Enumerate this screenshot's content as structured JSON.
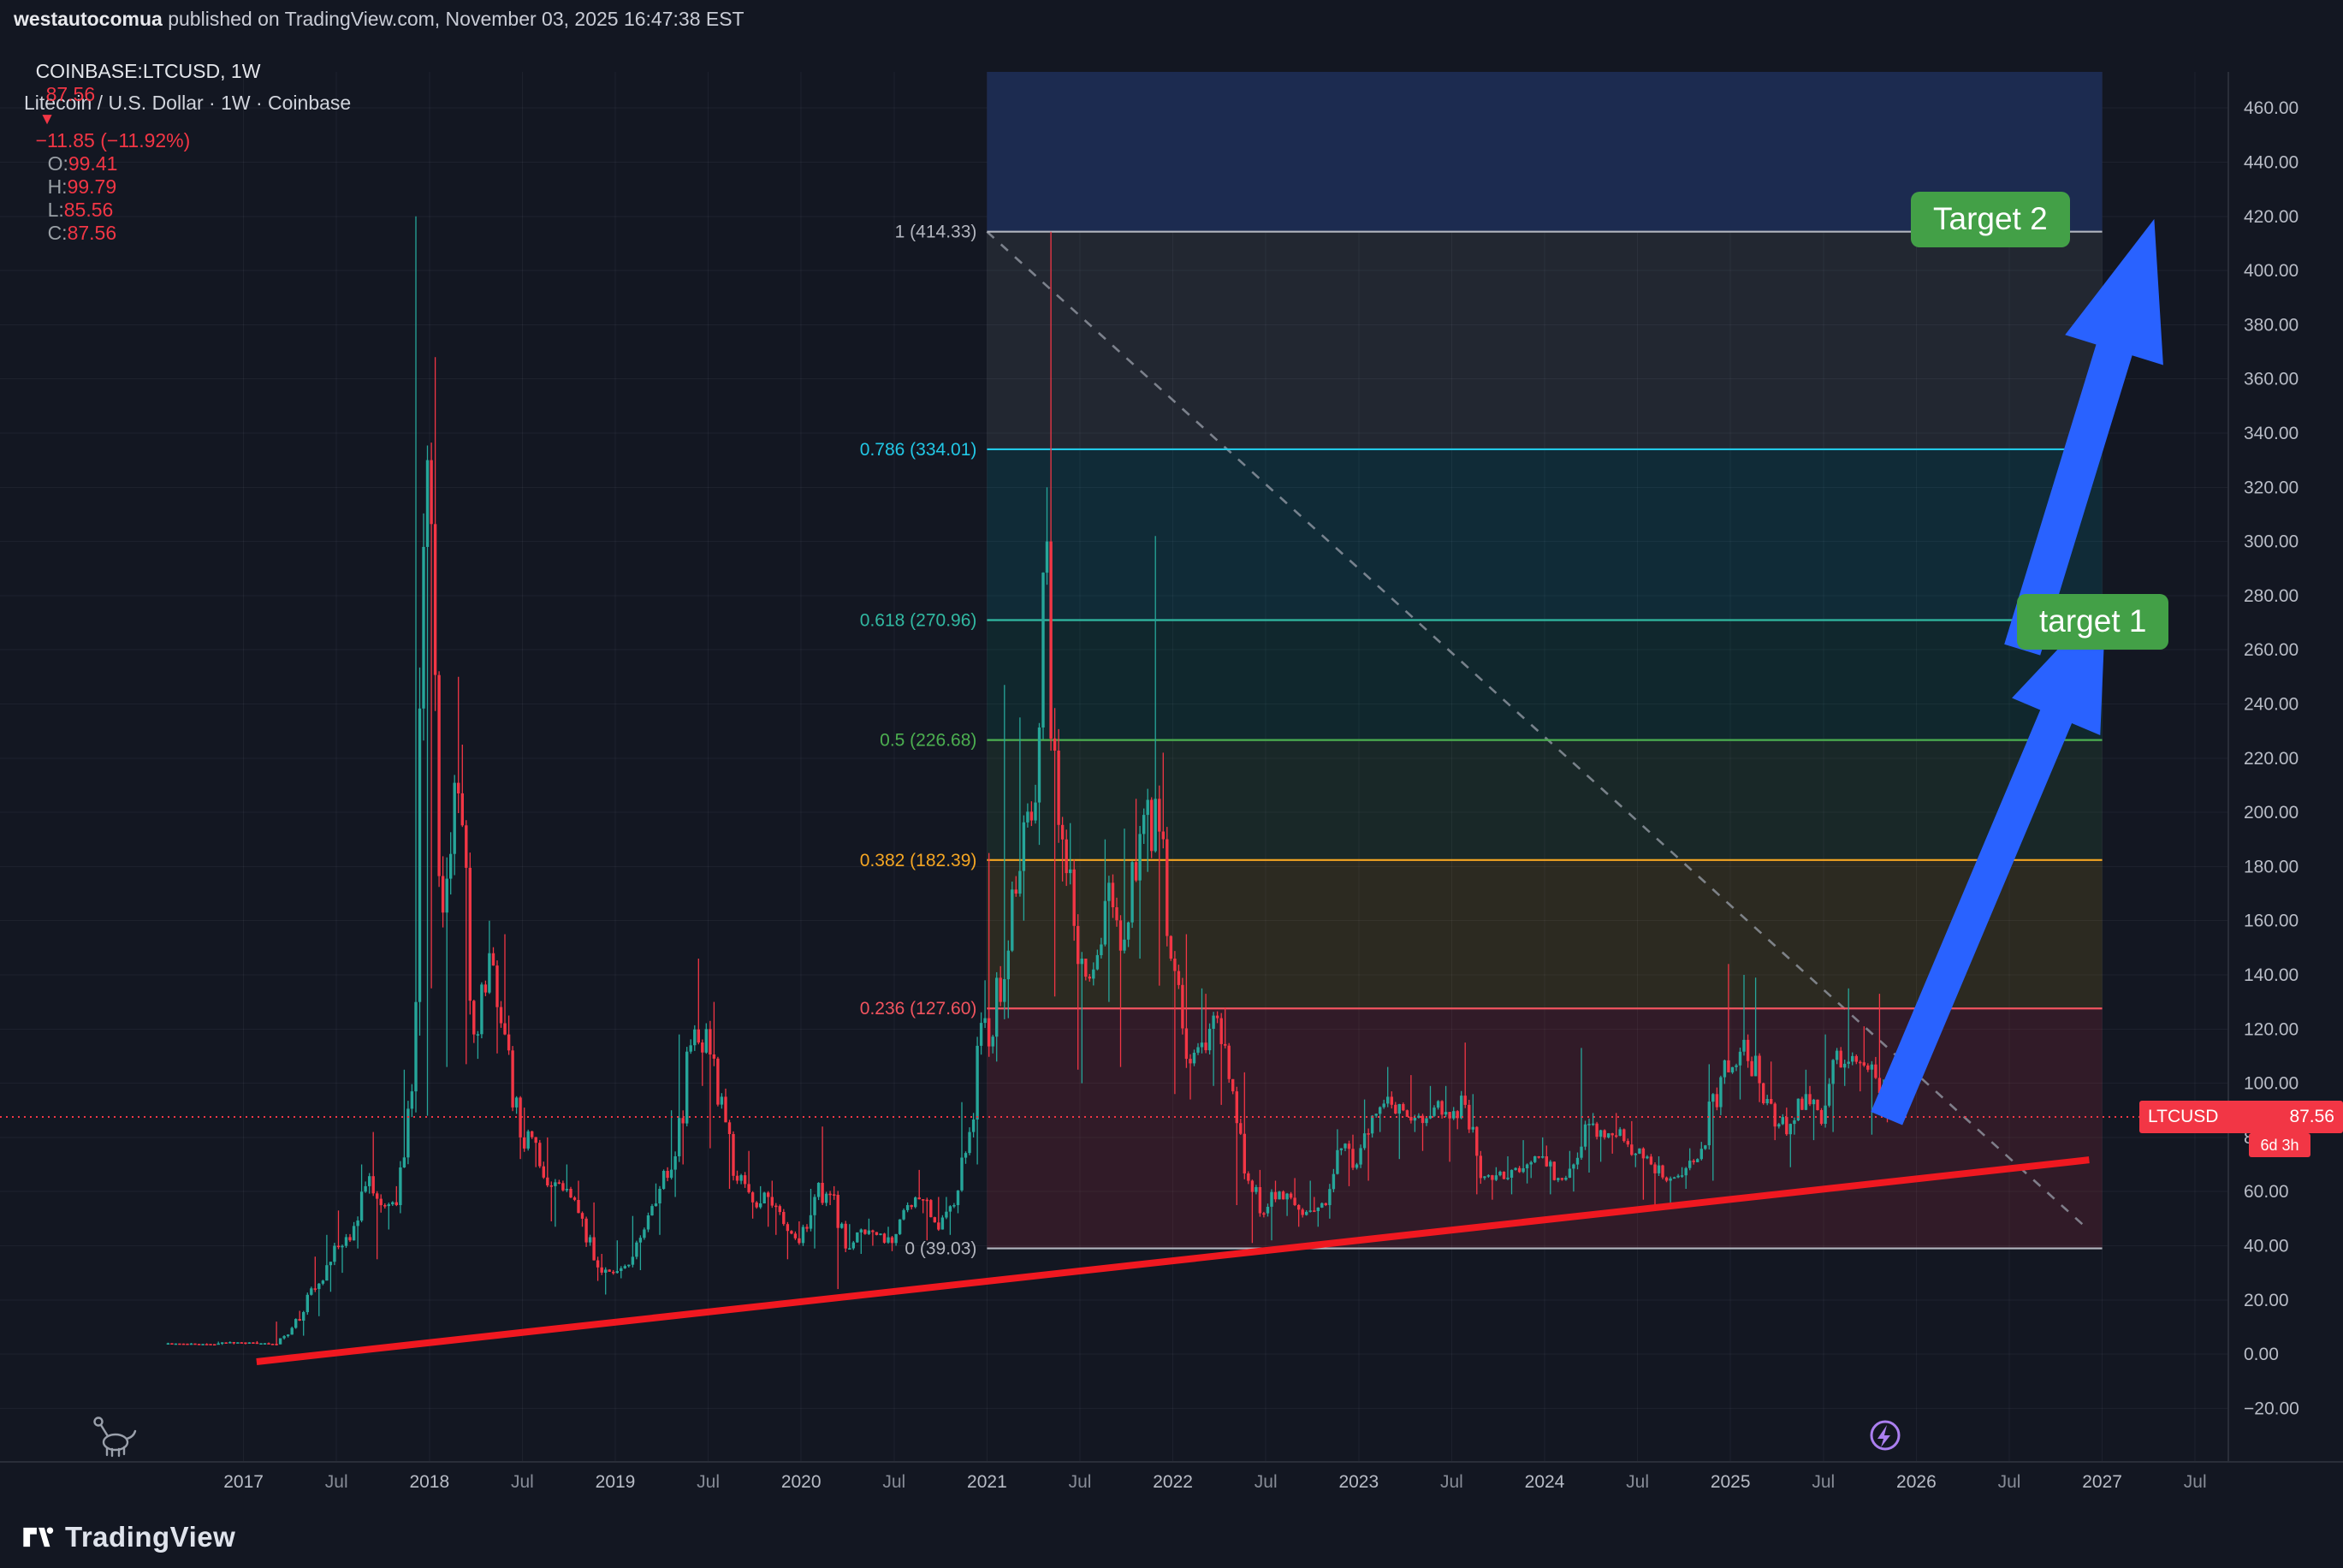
{
  "header": {
    "byline_user": "westautocomua",
    "byline_rest": " published on TradingView.com, November 03, 2025 16:47:38 EST",
    "symbol_line": {
      "symbol": "COINBASE:LTCUSD, 1W",
      "last": "87.56",
      "arrow": "▼",
      "change": "−11.85 (−11.92%)",
      "ohlc": [
        {
          "label": "O:",
          "value": "99.41"
        },
        {
          "label": "H:",
          "value": "99.79"
        },
        {
          "label": "L:",
          "value": "85.56"
        },
        {
          "label": "C:",
          "value": "87.56"
        }
      ]
    }
  },
  "chart_title": "Litecoin / U.S. Dollar · 1W · Coinbase",
  "badges": {
    "target1": "target 1",
    "target2": "Target 2"
  },
  "price_tag": {
    "symbol": "LTCUSD",
    "price": "87.56",
    "countdown": "6d 3h"
  },
  "footer": {
    "brand": "TradingView"
  },
  "colors_ui": {
    "badge_green": "#43a047",
    "tag_red": "#f23645"
  },
  "chart_data": {
    "type": "candlestick",
    "title": "Litecoin / U.S. Dollar · 1W · Coinbase",
    "y_axis": {
      "min": -20,
      "max": 460,
      "step": 20
    },
    "x_axis": {
      "years": [
        2017,
        2018,
        2019,
        2020,
        2021,
        2022,
        2023,
        2024,
        2025,
        2026,
        2027
      ],
      "mid_label": "Jul"
    },
    "current_price": 87.56,
    "colors": {
      "bg": "#131722",
      "grid": "rgba(197,203,220,0.06)",
      "border": "#2a2e39",
      "up": "#26a69a",
      "down": "#f23645",
      "trend": "#f01820",
      "arrow": "#2962ff",
      "dashed": "#9aa0ab",
      "axis_text": "#b8bcc6",
      "axis_text_dim": "#868b96",
      "top_band": "#1c2b50"
    },
    "fib": {
      "x_start": 2021.0,
      "x_end": 2027.0,
      "levels": [
        {
          "ratio": "1",
          "price": 414.33,
          "color": "#b2b5be"
        },
        {
          "ratio": "0.786",
          "price": 334.01,
          "color": "#22c8e6"
        },
        {
          "ratio": "0.618",
          "price": 270.96,
          "color": "#31b9a2"
        },
        {
          "ratio": "0.5",
          "price": 226.68,
          "color": "#4caf50"
        },
        {
          "ratio": "0.382",
          "price": 182.39,
          "color": "#f5a623"
        },
        {
          "ratio": "0.236",
          "price": 127.6,
          "color": "#f2545f"
        },
        {
          "ratio": "0",
          "price": 39.03,
          "color": "#b2b5be"
        }
      ],
      "band_fills": [
        "rgba(150,155,166,0.12)",
        "rgba(0,190,214,0.12)",
        "rgba(0,170,140,0.11)",
        "rgba(80,180,90,0.11)",
        "rgba(230,180,30,0.12)",
        "rgba(235,60,80,0.14)"
      ]
    },
    "trendline": {
      "x1": 2017.07,
      "p1": -2.8,
      "x2": 2026.93,
      "p2": 71.7
    },
    "dashed_line": {
      "x1": 2021.0,
      "p1": 414.33,
      "x2": 2026.92,
      "p2": 46.3
    },
    "arrows": [
      {
        "name": "arrow-target-1",
        "tail": [
          2025.84,
          87
        ],
        "tip": [
          2027.02,
          279
        ],
        "sw": 20,
        "hw": 56,
        "hl": 150
      },
      {
        "name": "arrow-target-2",
        "tail": [
          2026.57,
          260
        ],
        "tip": [
          2027.28,
          419
        ],
        "sw": 22,
        "hw": 60,
        "hl": 160
      }
    ],
    "candles_monthly_thlc": [
      [
        2016.5833,
        4.2,
        3.5,
        3.9
      ],
      [
        2016.6667,
        4.1,
        3.5,
        3.8
      ],
      [
        2016.75,
        4.0,
        3.4,
        3.7
      ],
      [
        2016.8333,
        4.6,
        3.4,
        4.3
      ],
      [
        2016.9167,
        4.7,
        3.6,
        4.3
      ],
      [
        2017.0,
        4.8,
        3.6,
        4.0
      ],
      [
        2017.0833,
        4.3,
        3.5,
        3.8
      ],
      [
        2017.1667,
        12,
        3.6,
        7.2
      ],
      [
        2017.25,
        16,
        6.8,
        15.5
      ],
      [
        2017.3333,
        36,
        14,
        26
      ],
      [
        2017.4167,
        44,
        23,
        40
      ],
      [
        2017.5,
        53,
        30,
        42
      ],
      [
        2017.5833,
        70,
        39,
        62
      ],
      [
        2017.6667,
        82,
        35,
        55
      ],
      [
        2017.75,
        62,
        46,
        55
      ],
      [
        2017.8333,
        105,
        52,
        97
      ],
      [
        2017.9167,
        420,
        88,
        330
      ],
      [
        2018.0,
        368,
        135,
        163
      ],
      [
        2018.0833,
        250,
        106,
        207
      ],
      [
        2018.1667,
        225,
        107,
        118
      ],
      [
        2018.25,
        160,
        109,
        148
      ],
      [
        2018.3333,
        155,
        111,
        118
      ],
      [
        2018.4167,
        125,
        72,
        80
      ],
      [
        2018.5,
        91,
        69,
        78
      ],
      [
        2018.5833,
        80,
        49,
        62
      ],
      [
        2018.6667,
        70,
        47,
        61
      ],
      [
        2018.75,
        64,
        47,
        50
      ],
      [
        2018.8333,
        56,
        27,
        32
      ],
      [
        2018.9167,
        37,
        22,
        30
      ],
      [
        2019.0,
        42,
        28,
        33
      ],
      [
        2019.0833,
        51,
        31,
        46
      ],
      [
        2019.1667,
        63,
        44,
        61
      ],
      [
        2019.25,
        90,
        58,
        73
      ],
      [
        2019.3333,
        118,
        70,
        114
      ],
      [
        2019.4167,
        146,
        99,
        120
      ],
      [
        2019.5,
        130,
        76,
        95
      ],
      [
        2019.5833,
        98,
        61,
        64
      ],
      [
        2019.6667,
        75,
        50,
        56
      ],
      [
        2019.75,
        62,
        47,
        58
      ],
      [
        2019.8333,
        64,
        44,
        48
      ],
      [
        2019.9167,
        49,
        35,
        41
      ],
      [
        2020.0,
        61,
        39,
        58
      ],
      [
        2020.0833,
        84,
        55,
        59
      ],
      [
        2020.1667,
        62,
        24,
        39
      ],
      [
        2020.25,
        48,
        37,
        46
      ],
      [
        2020.3333,
        50,
        40,
        44
      ],
      [
        2020.4167,
        47,
        38,
        41
      ],
      [
        2020.5,
        56,
        40,
        55
      ],
      [
        2020.5833,
        68,
        52,
        57
      ],
      [
        2020.6667,
        58,
        42,
        46
      ],
      [
        2020.75,
        58,
        44,
        55
      ],
      [
        2020.8333,
        93,
        52,
        82
      ],
      [
        2020.9167,
        138,
        70,
        124
      ],
      [
        2021.0,
        185,
        108,
        130
      ],
      [
        2021.0833,
        247,
        124,
        170
      ],
      [
        2021.1667,
        235,
        160,
        197
      ],
      [
        2021.25,
        320,
        188,
        300
      ],
      [
        2021.3333,
        414.33,
        132,
        190
      ],
      [
        2021.4167,
        196,
        105,
        144
      ],
      [
        2021.5,
        146,
        100,
        142
      ],
      [
        2021.5833,
        190,
        130,
        174
      ],
      [
        2021.6667,
        194,
        106,
        153
      ],
      [
        2021.75,
        205,
        146,
        192
      ],
      [
        2021.8333,
        302,
        178,
        205
      ],
      [
        2021.9167,
        222,
        136,
        146
      ],
      [
        2022.0,
        155,
        96,
        109
      ],
      [
        2022.0833,
        135,
        94,
        115
      ],
      [
        2022.1667,
        133,
        99,
        124
      ],
      [
        2022.25,
        128,
        92,
        97
      ],
      [
        2022.3333,
        104,
        55,
        64
      ],
      [
        2022.4167,
        68,
        41,
        52
      ],
      [
        2022.5,
        64,
        42,
        60
      ],
      [
        2022.5833,
        65,
        51,
        55
      ],
      [
        2022.6667,
        64,
        47,
        53
      ],
      [
        2022.75,
        58,
        47,
        55
      ],
      [
        2022.8333,
        83,
        50,
        76
      ],
      [
        2022.9167,
        81,
        62,
        70
      ],
      [
        2023.0,
        94,
        64,
        88
      ],
      [
        2023.0833,
        106,
        82,
        95
      ],
      [
        2023.1667,
        97,
        72,
        90
      ],
      [
        2023.25,
        103,
        82,
        88
      ],
      [
        2023.3333,
        99,
        75,
        91
      ],
      [
        2023.4167,
        99,
        71,
        87
      ],
      [
        2023.5,
        115,
        83,
        92
      ],
      [
        2023.5833,
        96,
        59,
        65
      ],
      [
        2023.6667,
        69,
        57,
        66
      ],
      [
        2023.75,
        73,
        59,
        68
      ],
      [
        2023.8333,
        79,
        63,
        70
      ],
      [
        2023.9167,
        80,
        65,
        73
      ],
      [
        2024.0,
        77,
        59,
        65
      ],
      [
        2024.0833,
        75,
        60,
        70
      ],
      [
        2024.1667,
        113,
        67,
        85
      ],
      [
        2024.25,
        89,
        71,
        80
      ],
      [
        2024.3333,
        89,
        74,
        83
      ],
      [
        2024.4167,
        86,
        69,
        74
      ],
      [
        2024.5,
        76,
        57,
        70
      ],
      [
        2024.5833,
        73,
        55,
        64
      ],
      [
        2024.6667,
        69,
        56,
        66
      ],
      [
        2024.75,
        76,
        61,
        72
      ],
      [
        2024.8333,
        107,
        64,
        96
      ],
      [
        2024.9167,
        144,
        90,
        104
      ],
      [
        2025.0,
        140,
        94,
        116
      ],
      [
        2025.0833,
        139,
        93,
        100
      ],
      [
        2025.1667,
        108,
        79,
        84
      ],
      [
        2025.25,
        91,
        69,
        85
      ],
      [
        2025.3333,
        105,
        81,
        96
      ],
      [
        2025.4167,
        99,
        79,
        85
      ],
      [
        2025.5,
        118,
        82,
        112
      ],
      [
        2025.5833,
        135,
        99,
        110
      ],
      [
        2025.6667,
        121,
        97,
        105
      ],
      [
        2025.75,
        133,
        81,
        99.41
      ],
      [
        2025.8333,
        99.79,
        85.56,
        87.56
      ]
    ]
  }
}
